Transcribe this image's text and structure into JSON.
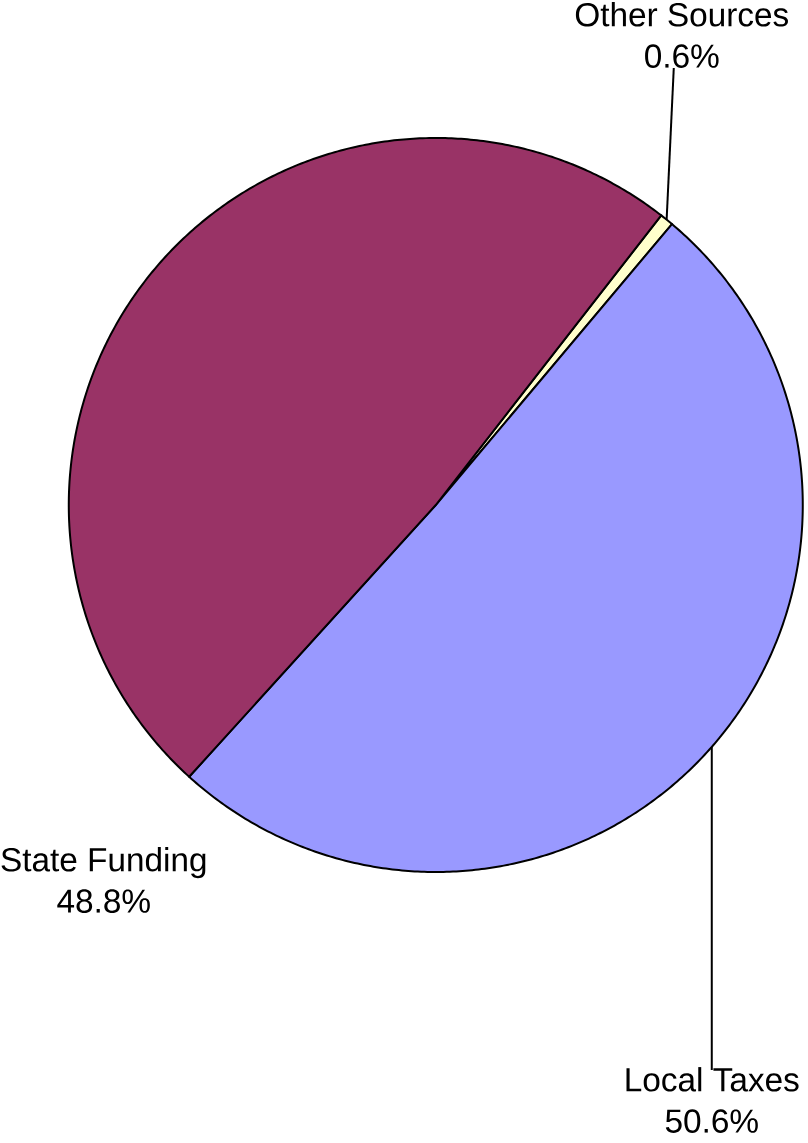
{
  "chart_data": {
    "type": "pie",
    "categories": [
      "Other Sources",
      "Local Taxes",
      "State Funding"
    ],
    "values": [
      0.6,
      50.6,
      48.8
    ],
    "value_labels": [
      "0.6%",
      "50.6%",
      "48.8%"
    ],
    "colors": [
      "#ffffcc",
      "#9999ff",
      "#993366"
    ],
    "legend": false
  }
}
